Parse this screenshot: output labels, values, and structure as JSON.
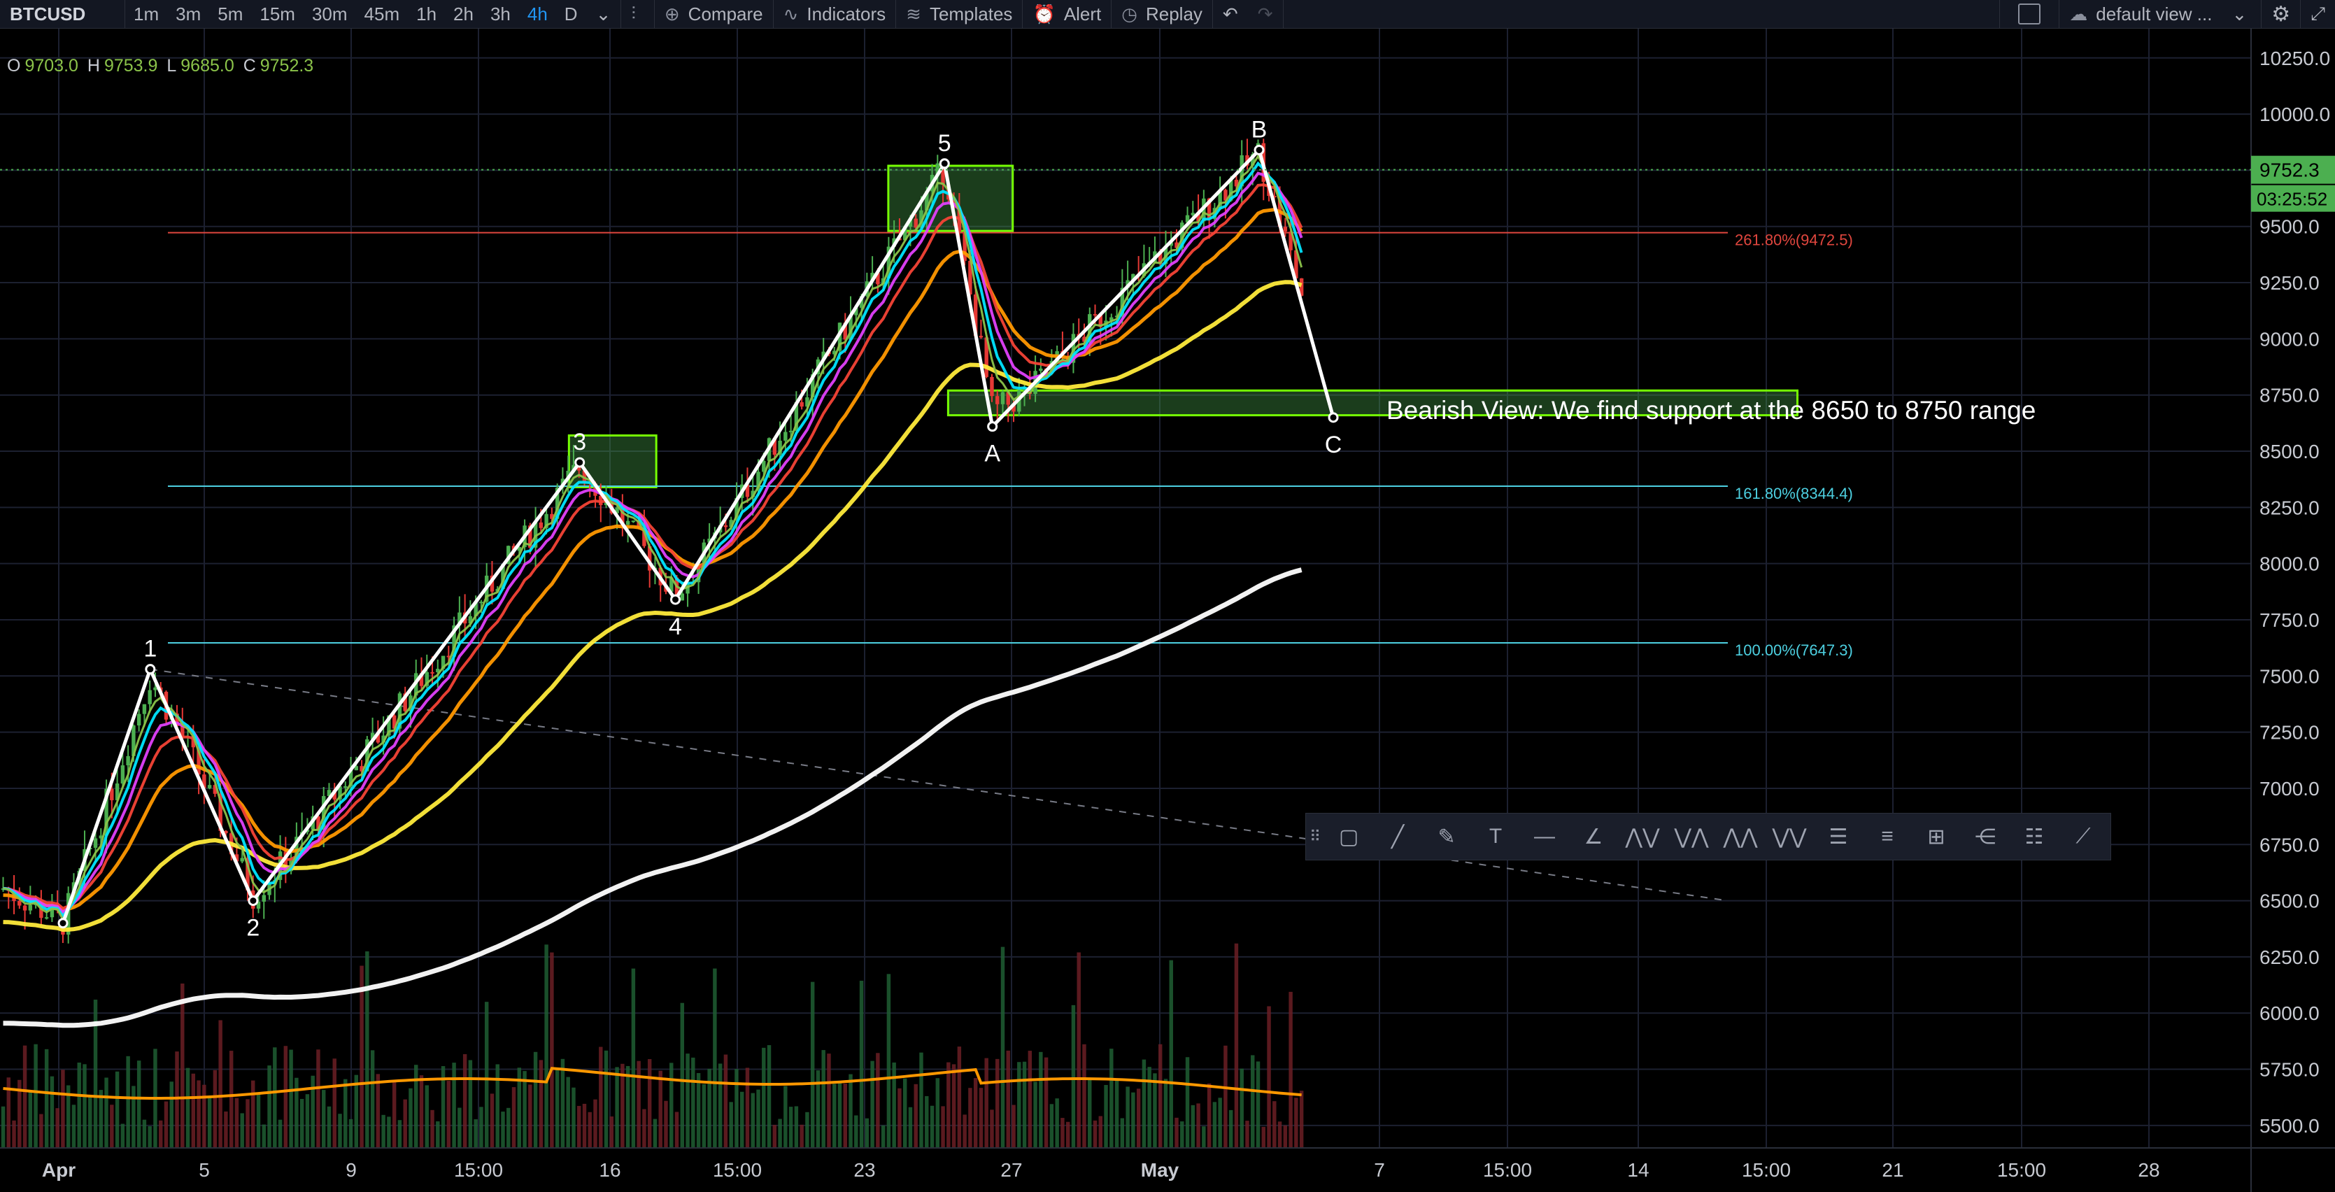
{
  "toolbar": {
    "symbol": "BTCUSD",
    "timeframes": [
      "1m",
      "3m",
      "5m",
      "15m",
      "30m",
      "45m",
      "1h",
      "2h",
      "3h",
      "4h",
      "D"
    ],
    "active_timeframe": "4h",
    "compare_label": "Compare",
    "indicators_label": "Indicators",
    "templates_label": "Templates",
    "alert_label": "Alert",
    "replay_label": "Replay",
    "layout_label": "default view ..."
  },
  "legend": {
    "open_key": "O",
    "open": "9703.0",
    "high_key": "H",
    "high": "9753.9",
    "low_key": "L",
    "low": "9685.0",
    "close_key": "C",
    "close": "9752.3"
  },
  "chart_data": {
    "type": "candlestick",
    "symbol": "BTCUSD",
    "interval": "4h",
    "price_axis": {
      "range": [
        5400,
        10380
      ],
      "ticks": [
        10250,
        10000,
        9750,
        9500,
        9250,
        9000,
        8750,
        8500,
        8250,
        8000,
        7750,
        7500,
        7250,
        7000,
        6750,
        6500,
        6250,
        6000,
        5750,
        5500
      ],
      "tick_labels": [
        "10250.0",
        "10000.0",
        "9750.0",
        "9500.0",
        "9250.0",
        "9000.0",
        "8750.0",
        "8500.0",
        "8250.0",
        "8000.0",
        "7750.0",
        "7500.0",
        "7250.0",
        "7000.0",
        "6750.0",
        "6500.0",
        "6250.0",
        "6000.0",
        "5750.0",
        "5500.0"
      ]
    },
    "time_axis": {
      "tick_labels": [
        "Apr",
        "5",
        "9",
        "15:00",
        "16",
        "15:00",
        "23",
        "27",
        "May",
        "7",
        "15:00",
        "14",
        "15:00",
        "21",
        "15:00",
        "28"
      ],
      "tick_bold": [
        true,
        false,
        false,
        false,
        false,
        false,
        false,
        false,
        true,
        false,
        false,
        false,
        false,
        false,
        false,
        false
      ],
      "tick_x_index": [
        0,
        0.118,
        0.237,
        0.355,
        0.473,
        0.591,
        0.709,
        0.828,
        0.946,
        1.064,
        1.182,
        1.3,
        1.418,
        1.536,
        1.654,
        1.772
      ]
    },
    "last_price_label": "9752.3",
    "countdown_label": "03:25:52",
    "last_price": 9752.3,
    "wave_points": [
      {
        "label": "",
        "t": 0.0,
        "p": 6400
      },
      {
        "label": "1",
        "t": 0.073,
        "p": 7530
      },
      {
        "label": "2",
        "t": 0.159,
        "p": 6500
      },
      {
        "label": "3",
        "t": 0.432,
        "p": 8450
      },
      {
        "label": "4",
        "t": 0.512,
        "p": 7840
      },
      {
        "label": "5",
        "t": 0.737,
        "p": 9780
      },
      {
        "label": "A",
        "t": 0.777,
        "p": 8610
      },
      {
        "label": "B",
        "t": 1.0,
        "p": 9840
      },
      {
        "label": "C",
        "t": 1.062,
        "p": 8650
      }
    ],
    "fib_levels": [
      {
        "label": "261.80%(9472.5)",
        "price": 9472.5,
        "color": "#e0463e"
      },
      {
        "label": "161.80%(8344.4)",
        "price": 8344.4,
        "color": "#4dd0e1"
      },
      {
        "label": "100.00%(7647.3)",
        "price": 7647.3,
        "color": "#4dd0e1"
      }
    ],
    "boxes": [
      {
        "t0": 0.423,
        "t1": 0.496,
        "p0": 8340,
        "p1": 8570
      },
      {
        "t0": 0.69,
        "t1": 0.794,
        "p0": 9480,
        "p1": 9770
      },
      {
        "t0": 0.74,
        "t1": 1.45,
        "p0": 8660,
        "p1": 8770
      }
    ],
    "annotation": "Bearish View: We find support at the 8650 to 8750 range",
    "colors": {
      "up": "#4caf50",
      "down": "#e53935",
      "ema_white": "#ffffff",
      "ema_yellow": "#ffeb3b",
      "ema_orange": "#ff9800",
      "ema_red": "#f44336",
      "ema_pink": "#e040fb",
      "ema_cyan": "#00e5ff",
      "ema_green": "#8bc34a"
    }
  }
}
